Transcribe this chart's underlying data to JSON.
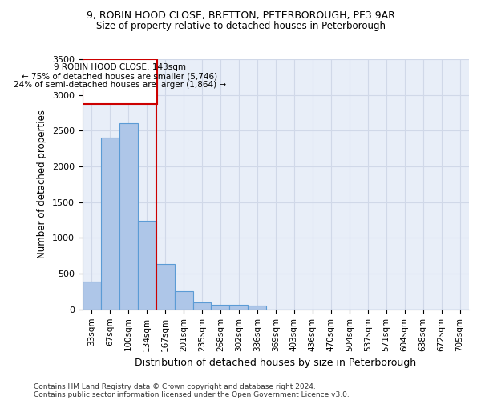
{
  "title1": "9, ROBIN HOOD CLOSE, BRETTON, PETERBOROUGH, PE3 9AR",
  "title2": "Size of property relative to detached houses in Peterborough",
  "xlabel": "Distribution of detached houses by size in Peterborough",
  "ylabel": "Number of detached properties",
  "footnote1": "Contains HM Land Registry data © Crown copyright and database right 2024.",
  "footnote2": "Contains public sector information licensed under the Open Government Licence v3.0.",
  "categories": [
    "33sqm",
    "67sqm",
    "100sqm",
    "134sqm",
    "167sqm",
    "201sqm",
    "235sqm",
    "268sqm",
    "302sqm",
    "336sqm",
    "369sqm",
    "403sqm",
    "436sqm",
    "470sqm",
    "504sqm",
    "537sqm",
    "571sqm",
    "604sqm",
    "638sqm",
    "672sqm",
    "705sqm"
  ],
  "values": [
    390,
    2400,
    2600,
    1240,
    640,
    260,
    100,
    65,
    60,
    50,
    0,
    0,
    0,
    0,
    0,
    0,
    0,
    0,
    0,
    0,
    0
  ],
  "bar_color": "#aec6e8",
  "bar_edge_color": "#5b9bd5",
  "property_line_label": "9 ROBIN HOOD CLOSE: 143sqm",
  "annotation_line1": "← 75% of detached houses are smaller (5,746)",
  "annotation_line2": "24% of semi-detached houses are larger (1,864) →",
  "annotation_box_color": "#cc0000",
  "ylim": [
    0,
    3500
  ],
  "yticks": [
    0,
    500,
    1000,
    1500,
    2000,
    2500,
    3000,
    3500
  ],
  "grid_color": "#d0d8e8",
  "plot_bg_color": "#e8eef8"
}
